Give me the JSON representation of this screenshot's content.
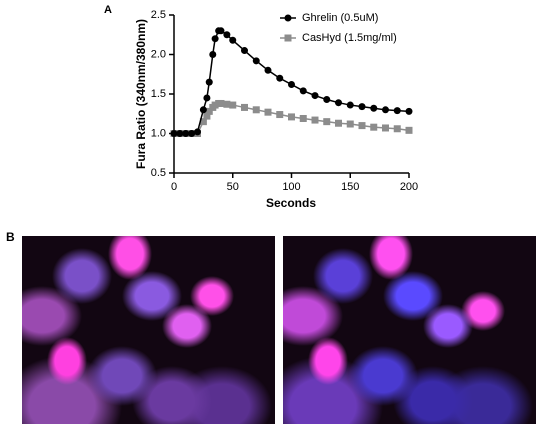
{
  "panel_a_label": "A",
  "panel_b_label": "B",
  "chart_data": {
    "type": "line",
    "xlabel": "Seconds",
    "ylabel": "Fura Ratio (340nm/380nm)",
    "x": [
      0,
      5,
      10,
      15,
      20,
      25,
      28,
      30,
      33,
      35,
      38,
      40,
      45,
      50,
      60,
      70,
      80,
      90,
      100,
      110,
      120,
      130,
      140,
      150,
      160,
      170,
      180,
      190,
      200
    ],
    "series": [
      {
        "name": "Ghrelin (0.5uM)",
        "color": "#000000",
        "marker": "circle",
        "values": [
          1.0,
          1.0,
          1.0,
          1.0,
          1.02,
          1.3,
          1.45,
          1.65,
          2.0,
          2.2,
          2.3,
          2.3,
          2.25,
          2.18,
          2.05,
          1.92,
          1.8,
          1.7,
          1.62,
          1.54,
          1.48,
          1.43,
          1.39,
          1.36,
          1.34,
          1.32,
          1.3,
          1.29,
          1.28
        ]
      },
      {
        "name": "CasHyd (1.5mg/ml)",
        "color": "#8c8c8c",
        "marker": "square",
        "values": [
          1.0,
          1.0,
          1.0,
          1.0,
          1.0,
          1.15,
          1.22,
          1.28,
          1.33,
          1.36,
          1.38,
          1.38,
          1.37,
          1.36,
          1.33,
          1.3,
          1.27,
          1.24,
          1.21,
          1.19,
          1.17,
          1.15,
          1.13,
          1.12,
          1.1,
          1.08,
          1.07,
          1.06,
          1.04
        ]
      }
    ],
    "xlim": [
      0,
      200
    ],
    "ylim": [
      0.5,
      2.5
    ],
    "xticks": [
      0,
      50,
      100,
      150,
      200
    ],
    "yticks": [
      0.5,
      {
        "value": 1,
        "label": "1.0"
      },
      1.5,
      {
        "value": 2,
        "label": "2.0"
      },
      2.5
    ]
  }
}
